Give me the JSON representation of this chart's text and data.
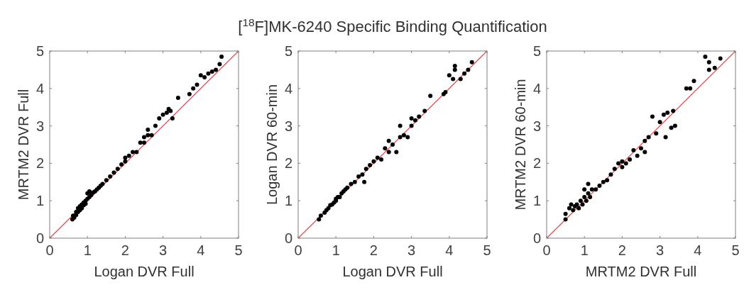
{
  "chart_data": [
    {
      "type": "scatter",
      "grid": false,
      "xlabel": "Logan DVR Full",
      "ylabel": "MRTM2 DVR Full",
      "xlim": [
        0,
        5
      ],
      "ylim": [
        0,
        5
      ],
      "xticks": [
        0,
        1,
        2,
        3,
        4,
        5
      ],
      "yticks": [
        0,
        1,
        2,
        3,
        4,
        5
      ],
      "series": [
        {
          "type": "scatter",
          "marker": "circle",
          "color": "#000000",
          "x": [
            0.6,
            0.62,
            0.65,
            0.7,
            0.7,
            0.75,
            0.75,
            0.8,
            0.8,
            0.85,
            0.85,
            0.9,
            0.9,
            0.95,
            0.95,
            1.0,
            1.0,
            1.05,
            1.05,
            1.1,
            1.1,
            1.15,
            1.2,
            1.25,
            1.3,
            1.35,
            1.4,
            1.5,
            1.6,
            1.7,
            1.8,
            1.9,
            2.0,
            2.0,
            2.1,
            2.2,
            2.3,
            2.4,
            2.5,
            2.5,
            2.6,
            2.6,
            2.7,
            2.8,
            2.9,
            3.0,
            3.1,
            3.15,
            3.2,
            3.25,
            3.4,
            3.7,
            3.8,
            3.9,
            4.0,
            4.1,
            4.2,
            4.3,
            4.4,
            4.5,
            4.55
          ],
          "values": [
            0.5,
            0.6,
            0.55,
            0.7,
            0.62,
            0.8,
            0.7,
            0.85,
            0.75,
            0.9,
            0.8,
            0.95,
            0.88,
            1.0,
            0.92,
            1.05,
            1.2,
            1.1,
            1.25,
            1.15,
            1.2,
            1.22,
            1.25,
            1.3,
            1.35,
            1.4,
            1.45,
            1.55,
            1.65,
            1.75,
            1.85,
            1.97,
            2.05,
            2.15,
            2.2,
            2.3,
            2.3,
            2.55,
            2.55,
            2.7,
            2.75,
            2.9,
            2.75,
            3.0,
            3.2,
            3.3,
            3.35,
            3.45,
            3.4,
            3.2,
            3.75,
            3.85,
            4.0,
            4.1,
            4.35,
            4.3,
            4.4,
            4.45,
            4.5,
            4.65,
            4.85
          ]
        },
        {
          "type": "line",
          "color": "#e8474a",
          "x": [
            0,
            5
          ],
          "values": [
            0,
            5
          ]
        }
      ]
    },
    {
      "type": "scatter",
      "grid": false,
      "title": "[$^{18}$F]MK-6240 Specific Binding Quantification",
      "xlabel": "Logan DVR Full",
      "ylabel": "Logan DVR 60-min",
      "xlim": [
        0,
        5
      ],
      "ylim": [
        0,
        5
      ],
      "xticks": [
        0,
        1,
        2,
        3,
        4,
        5
      ],
      "yticks": [
        0,
        1,
        2,
        3,
        4,
        5
      ],
      "series": [
        {
          "type": "scatter",
          "marker": "circle",
          "color": "#000000",
          "x": [
            0.55,
            0.6,
            0.7,
            0.75,
            0.8,
            0.85,
            0.9,
            0.95,
            1.0,
            1.0,
            1.05,
            1.1,
            1.15,
            1.2,
            1.25,
            1.3,
            1.4,
            1.5,
            1.6,
            1.7,
            1.75,
            1.8,
            1.9,
            2.0,
            2.1,
            2.2,
            2.3,
            2.4,
            2.4,
            2.5,
            2.6,
            2.7,
            2.7,
            2.8,
            2.9,
            3.0,
            3.0,
            3.1,
            3.2,
            3.35,
            3.5,
            3.85,
            3.9,
            4.0,
            4.1,
            4.15,
            4.15,
            4.3,
            4.4,
            4.5,
            4.6
          ],
          "values": [
            0.5,
            0.6,
            0.68,
            0.75,
            0.8,
            0.88,
            0.9,
            0.95,
            1.0,
            1.05,
            1.1,
            1.1,
            1.2,
            1.25,
            1.3,
            1.35,
            1.45,
            1.5,
            1.65,
            1.7,
            1.5,
            1.85,
            1.95,
            2.05,
            2.15,
            2.1,
            2.4,
            2.3,
            2.6,
            2.5,
            2.3,
            2.7,
            3.0,
            2.75,
            2.7,
            3.0,
            3.2,
            3.15,
            3.25,
            3.4,
            3.8,
            3.85,
            3.9,
            4.35,
            4.25,
            4.5,
            4.6,
            4.25,
            4.4,
            4.5,
            4.7
          ]
        },
        {
          "type": "line",
          "color": "#e8474a",
          "x": [
            0,
            5
          ],
          "values": [
            0,
            5
          ]
        }
      ]
    },
    {
      "type": "scatter",
      "grid": false,
      "xlabel": "MRTM2 DVR Full",
      "ylabel": "MRTM2 DVR 60-min",
      "xlim": [
        0,
        5
      ],
      "ylim": [
        0,
        5
      ],
      "xticks": [
        0,
        1,
        2,
        3,
        4,
        5
      ],
      "yticks": [
        0,
        1,
        2,
        3,
        4,
        5
      ],
      "series": [
        {
          "type": "scatter",
          "marker": "circle",
          "color": "#000000",
          "x": [
            0.5,
            0.5,
            0.6,
            0.65,
            0.7,
            0.75,
            0.8,
            0.85,
            0.9,
            0.95,
            1.0,
            1.0,
            1.05,
            1.1,
            1.1,
            1.15,
            1.2,
            1.3,
            1.4,
            1.5,
            1.6,
            1.7,
            1.8,
            1.9,
            2.0,
            2.0,
            2.1,
            2.2,
            2.3,
            2.4,
            2.5,
            2.6,
            2.6,
            2.7,
            2.8,
            2.9,
            3.0,
            3.1,
            3.15,
            3.2,
            3.3,
            3.35,
            3.4,
            3.7,
            3.8,
            3.9,
            4.2,
            4.3,
            4.3,
            4.45,
            4.6
          ],
          "values": [
            0.5,
            0.65,
            0.8,
            0.9,
            0.75,
            0.85,
            0.9,
            0.8,
            1.0,
            0.9,
            1.1,
            1.3,
            1.0,
            1.2,
            1.45,
            1.1,
            1.3,
            1.3,
            1.4,
            1.5,
            1.55,
            1.7,
            1.85,
            2.0,
            1.9,
            2.05,
            2.0,
            2.1,
            2.35,
            2.2,
            2.4,
            2.3,
            2.6,
            2.7,
            3.25,
            2.8,
            3.1,
            3.3,
            2.7,
            3.35,
            2.95,
            3.4,
            3.0,
            4.0,
            4.0,
            4.2,
            4.85,
            4.7,
            4.5,
            4.55,
            4.8
          ]
        },
        {
          "type": "line",
          "color": "#e8474a",
          "x": [
            0,
            5
          ],
          "values": [
            0,
            5
          ]
        }
      ]
    }
  ]
}
